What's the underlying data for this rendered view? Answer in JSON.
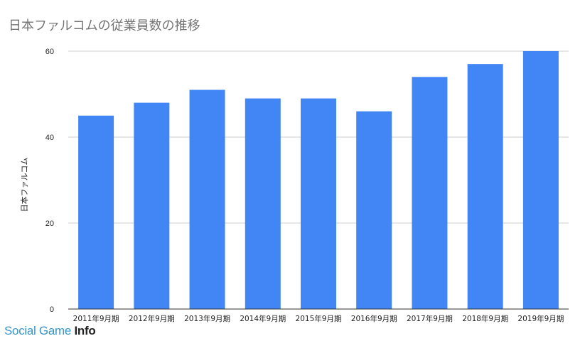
{
  "chart_data": {
    "type": "bar",
    "title": "日本ファルコムの従業員数の推移",
    "ylabel": "日本ファルコム",
    "xlabel": "",
    "categories": [
      "2011年9月期",
      "2012年9月期",
      "2013年9月期",
      "2014年9月期",
      "2015年9月期",
      "2016年9月期",
      "2017年9月期",
      "2018年9月期",
      "2019年9月期"
    ],
    "values": [
      45,
      48,
      51,
      49,
      49,
      46,
      54,
      57,
      60
    ],
    "ylim": [
      0,
      60
    ],
    "yticks": [
      0,
      20,
      40,
      60
    ],
    "grid": true,
    "bar_color": "#4285f4"
  },
  "watermark": {
    "main": "Social Game ",
    "info": "Info"
  }
}
